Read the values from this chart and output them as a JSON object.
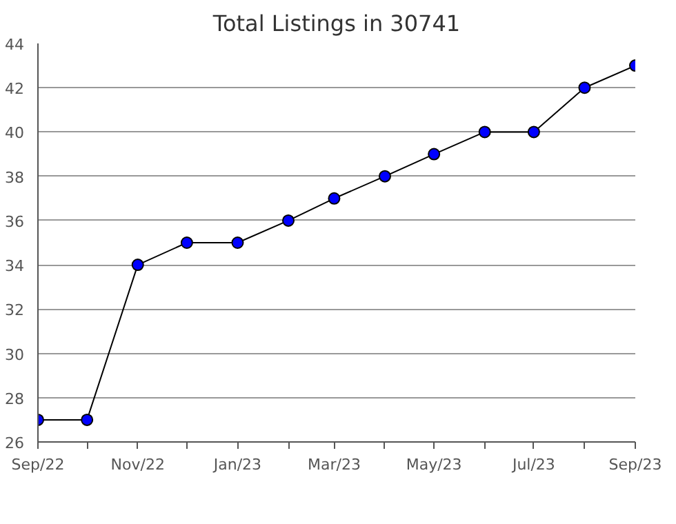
{
  "chart_data": {
    "type": "line",
    "title": "Total Listings in 30741",
    "x": [
      "2022-09",
      "2022-10",
      "2022-11",
      "2022-12",
      "2023-01",
      "2023-02",
      "2023-03",
      "2023-04",
      "2023-05",
      "2023-06",
      "2023-07",
      "2023-08",
      "2023-09"
    ],
    "series": [
      {
        "color": "#0000ff",
        "values": [
          27,
          27,
          34,
          35,
          35,
          36,
          37,
          38,
          39,
          40,
          40,
          42,
          43
        ]
      }
    ],
    "xlim": [
      "2022-09",
      "2023-09"
    ],
    "xticks": [
      {
        "value": "2022-09",
        "label": "Sep/22"
      },
      {
        "value": "2022-10",
        "label": null
      },
      {
        "value": "2022-11",
        "label": "Nov/22"
      },
      {
        "value": "2022-12",
        "label": null
      },
      {
        "value": "2023-01",
        "label": "Jan/23"
      },
      {
        "value": "2023-02",
        "label": null
      },
      {
        "value": "2023-03",
        "label": "Mar/23"
      },
      {
        "value": "2023-04",
        "label": null
      },
      {
        "value": "2023-05",
        "label": "May/23"
      },
      {
        "value": "2023-06",
        "label": null
      },
      {
        "value": "2023-07",
        "label": "Jul/23"
      },
      {
        "value": "2023-08",
        "label": null
      },
      {
        "value": "2023-09",
        "label": "Sep/23"
      }
    ],
    "ylim": [
      26,
      44
    ],
    "yticks": [
      26,
      28,
      30,
      32,
      34,
      36,
      38,
      40,
      42,
      44
    ],
    "grid": "y",
    "marker": "circle",
    "line_style": "solid"
  }
}
